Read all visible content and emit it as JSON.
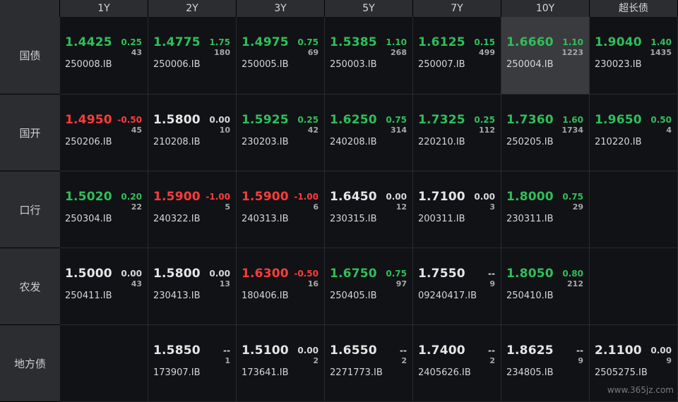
{
  "header": {
    "corner": "",
    "columns": [
      "1Y",
      "2Y",
      "3Y",
      "5Y",
      "7Y",
      "10Y",
      "超长债"
    ]
  },
  "rows": [
    {
      "label": "国债",
      "cells": [
        {
          "yield": "1.4425",
          "change": "0.25",
          "volume": "43",
          "code": "250008.IB",
          "trend": "up"
        },
        {
          "yield": "1.4775",
          "change": "1.75",
          "volume": "180",
          "code": "250006.IB",
          "trend": "up"
        },
        {
          "yield": "1.4975",
          "change": "0.75",
          "volume": "69",
          "code": "250005.IB",
          "trend": "up"
        },
        {
          "yield": "1.5385",
          "change": "1.10",
          "volume": "268",
          "code": "250003.IB",
          "trend": "up"
        },
        {
          "yield": "1.6125",
          "change": "0.15",
          "volume": "499",
          "code": "250007.IB",
          "trend": "up"
        },
        {
          "yield": "1.6660",
          "change": "1.10",
          "volume": "1223",
          "code": "250004.IB",
          "trend": "up",
          "highlighted": true
        },
        {
          "yield": "1.9040",
          "change": "1.40",
          "volume": "1435",
          "code": "230023.IB",
          "trend": "up"
        }
      ]
    },
    {
      "label": "国开",
      "cells": [
        {
          "yield": "1.4950",
          "change": "-0.50",
          "volume": "45",
          "code": "250206.IB",
          "trend": "down"
        },
        {
          "yield": "1.5800",
          "change": "0.00",
          "volume": "10",
          "code": "210208.IB",
          "trend": "flat"
        },
        {
          "yield": "1.5925",
          "change": "0.25",
          "volume": "42",
          "code": "230203.IB",
          "trend": "up"
        },
        {
          "yield": "1.6250",
          "change": "0.75",
          "volume": "314",
          "code": "240208.IB",
          "trend": "up"
        },
        {
          "yield": "1.7325",
          "change": "0.25",
          "volume": "112",
          "code": "220210.IB",
          "trend": "up"
        },
        {
          "yield": "1.7360",
          "change": "1.60",
          "volume": "1734",
          "code": "250205.IB",
          "trend": "up"
        },
        {
          "yield": "1.9650",
          "change": "0.50",
          "volume": "4",
          "code": "210220.IB",
          "trend": "up"
        }
      ]
    },
    {
      "label": "口行",
      "cells": [
        {
          "yield": "1.5020",
          "change": "0.20",
          "volume": "22",
          "code": "250304.IB",
          "trend": "up"
        },
        {
          "yield": "1.5900",
          "change": "-1.00",
          "volume": "5",
          "code": "240322.IB",
          "trend": "down"
        },
        {
          "yield": "1.5900",
          "change": "-1.00",
          "volume": "6",
          "code": "240313.IB",
          "trend": "down"
        },
        {
          "yield": "1.6450",
          "change": "0.00",
          "volume": "12",
          "code": "230315.IB",
          "trend": "flat"
        },
        {
          "yield": "1.7100",
          "change": "0.00",
          "volume": "3",
          "code": "200311.IB",
          "trend": "flat"
        },
        {
          "yield": "1.8000",
          "change": "0.75",
          "volume": "29",
          "code": "230311.IB",
          "trend": "up"
        },
        {
          "yield": "",
          "change": "",
          "volume": "",
          "code": "",
          "trend": "flat"
        }
      ]
    },
    {
      "label": "农发",
      "cells": [
        {
          "yield": "1.5000",
          "change": "0.00",
          "volume": "43",
          "code": "250411.IB",
          "trend": "flat"
        },
        {
          "yield": "1.5800",
          "change": "0.00",
          "volume": "13",
          "code": "230413.IB",
          "trend": "flat"
        },
        {
          "yield": "1.6300",
          "change": "-0.50",
          "volume": "16",
          "code": "180406.IB",
          "trend": "down"
        },
        {
          "yield": "1.6750",
          "change": "0.75",
          "volume": "97",
          "code": "250405.IB",
          "trend": "up"
        },
        {
          "yield": "1.7550",
          "change": "--",
          "volume": "9",
          "code": "09240417.IB",
          "trend": "flat"
        },
        {
          "yield": "1.8050",
          "change": "0.80",
          "volume": "212",
          "code": "250410.IB",
          "trend": "up"
        },
        {
          "yield": "",
          "change": "",
          "volume": "",
          "code": "",
          "trend": "flat"
        }
      ]
    },
    {
      "label": "地方债",
      "cells": [
        {
          "yield": "",
          "change": "",
          "volume": "",
          "code": "",
          "trend": "flat"
        },
        {
          "yield": "1.5850",
          "change": "--",
          "volume": "1",
          "code": "173907.IB",
          "trend": "flat"
        },
        {
          "yield": "1.5100",
          "change": "0.00",
          "volume": "2",
          "code": "173641.IB",
          "trend": "flat"
        },
        {
          "yield": "1.6550",
          "change": "--",
          "volume": "2",
          "code": "2271773.IB",
          "trend": "flat"
        },
        {
          "yield": "1.7400",
          "change": "--",
          "volume": "2",
          "code": "2405626.IB",
          "trend": "flat"
        },
        {
          "yield": "1.8625",
          "change": "--",
          "volume": "9",
          "code": "234805.IB",
          "trend": "flat"
        },
        {
          "yield": "2.1100",
          "change": "0.00",
          "volume": "9",
          "code": "2505275.IB",
          "trend": "flat"
        }
      ]
    }
  ],
  "colors": {
    "up": "#2fbf5b",
    "down": "#ff3b3b",
    "flat": "#e6e6e6",
    "header_bg": "#2c2d30",
    "cell_bg": "#111215",
    "highlight_bg": "#3a3b3e"
  },
  "watermark": "www.365jz.com"
}
